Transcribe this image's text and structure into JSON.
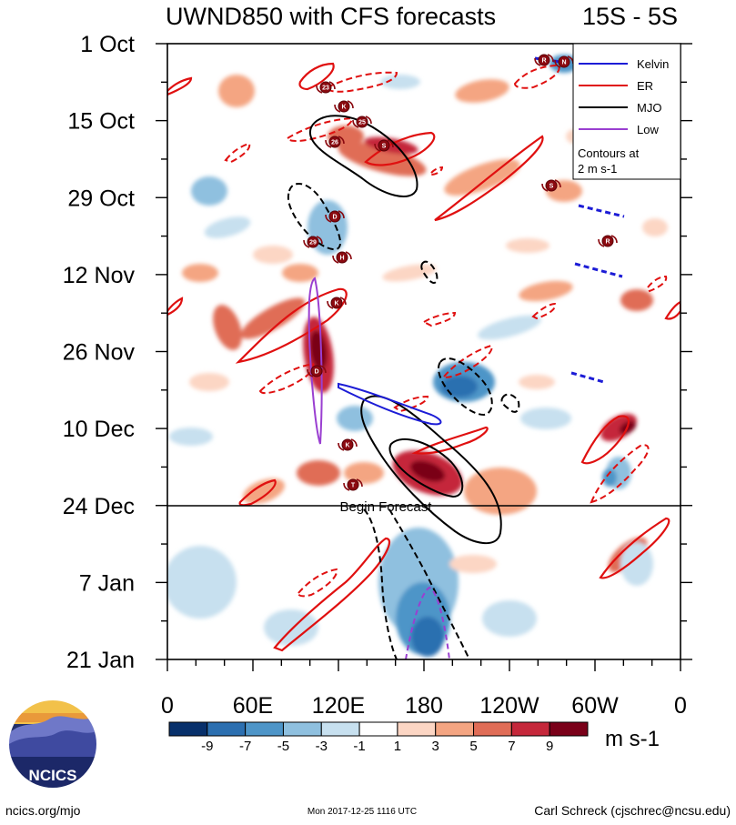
{
  "chart_data": {
    "type": "heatmap",
    "title": "UWND850 with CFS forecasts",
    "subtitle": "15S - 5S",
    "y_axis": {
      "labels": [
        "1 Oct",
        "15 Oct",
        "29 Oct",
        "12 Nov",
        "26 Nov",
        "10 Dec",
        "24 Dec",
        "7 Jan",
        "21 Jan"
      ],
      "orientation": "time increases downward"
    },
    "x_axis": {
      "labels": [
        "0",
        "60E",
        "120E",
        "180",
        "120W",
        "60W",
        "0"
      ],
      "range_deg_east": [
        0,
        360
      ]
    },
    "forecast_line": {
      "date": "24 Dec",
      "label": "Begin Forecast"
    },
    "colorbar": {
      "ticks": [
        "-9",
        "-7",
        "-5",
        "-3",
        "-1",
        "1",
        "3",
        "5",
        "7",
        "9"
      ],
      "units": "m s-1",
      "colors": [
        "#08306b",
        "#2c6fb0",
        "#4e95c8",
        "#8fc0df",
        "#c7e0ef",
        "#ffffff",
        "#fcd6c4",
        "#f4a582",
        "#e06d57",
        "#c5283b",
        "#7a0019"
      ]
    },
    "legend": {
      "items": [
        {
          "label": "Kelvin",
          "color": "#1c1cd6"
        },
        {
          "label": "ER",
          "color": "#e01010"
        },
        {
          "label": "MJO",
          "color": "#000000"
        },
        {
          "label": "Low",
          "color": "#9a3fd1"
        }
      ],
      "note": "Contours at\n2 m s-1",
      "placement": "top-right"
    },
    "storm_markers": [
      "R",
      "N",
      "23",
      "K",
      "25",
      "26",
      "S",
      "D",
      "29",
      "H",
      "K",
      "S",
      "R",
      "D",
      "K",
      "T"
    ]
  },
  "branding": {
    "logo_text": "NCICS"
  },
  "footer": {
    "url": "ncics.org/mjo",
    "timestamp": "Mon 2017-12-25 1116 UTC",
    "author": "Carl Schreck (cjschrec@ncsu.edu)"
  }
}
